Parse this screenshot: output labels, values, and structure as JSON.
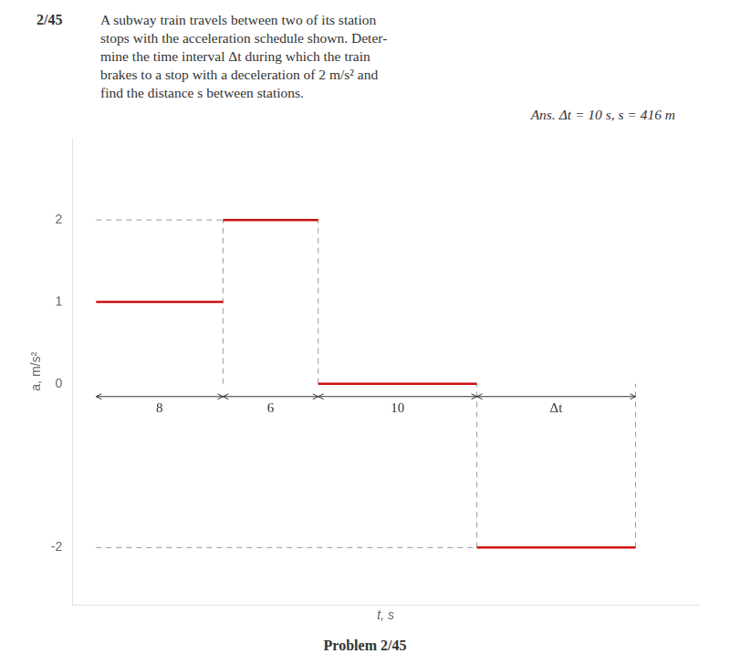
{
  "chart_data": {
    "type": "line",
    "title": "2/45",
    "subtitle": [
      "A subway train travels between two of its station",
      "stops with the acceleration schedule shown. Deter-",
      "mine the time interval Δt during which the train",
      "brakes to a stop with a deceleration of 2 m/s² and",
      "find the distance s between stations."
    ],
    "answer": "Ans. Δt = 10 s, s = 416 m",
    "caption": "Problem 2/45",
    "xlabel": "t, s",
    "ylabel": "a, m/s²",
    "series": [
      {
        "x": [
          0,
          8,
          8,
          8,
          14,
          14,
          14,
          24,
          24,
          24,
          34
        ],
        "values": [
          1,
          1,
          null,
          2,
          2,
          null,
          0,
          0,
          null,
          -2,
          -2
        ],
        "color": "#cc1111",
        "line_style": "solid"
      },
      {
        "x": [
          0,
          14,
          14,
          0,
          24,
          24,
          8,
          8,
          8,
          14,
          14,
          14,
          24,
          24,
          24,
          34,
          34
        ],
        "values": [
          2,
          2,
          null,
          -2,
          -2,
          null,
          0,
          2,
          null,
          0,
          2,
          null,
          -2,
          0,
          null,
          -2,
          0
        ],
        "color": "#999999",
        "line_style": "dashed"
      }
    ],
    "annotations": [
      {
        "text": "8",
        "x_start": 0,
        "x_end": 8
      },
      {
        "text": "6",
        "x_start": 8,
        "x_end": 14
      },
      {
        "text": "10",
        "x_start": 14,
        "x_end": 24
      },
      {
        "text": "Δt",
        "x_start": 24,
        "x_end": 34
      }
    ],
    "xlim": [
      -1.5,
      38
    ],
    "ylim": [
      -2.7,
      3.0
    ],
    "yticks": [
      -2,
      0,
      1,
      2
    ],
    "tick_labels": "y",
    "grid": false
  }
}
